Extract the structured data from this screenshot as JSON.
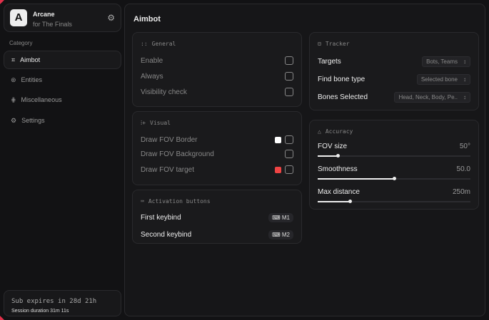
{
  "brand": {
    "name": "Arcane",
    "subtitle": "for The Finals",
    "logo_letter": "A"
  },
  "sidebar": {
    "category_label": "Category",
    "items": [
      {
        "label": "Aimbot",
        "icon": "crosshair-icon",
        "active": true
      },
      {
        "label": "Entities",
        "icon": "entities-icon"
      },
      {
        "label": "Miscellaneous",
        "icon": "misc-icon"
      },
      {
        "label": "Settings",
        "icon": "gear-icon"
      }
    ],
    "sub_expires": "Sub expires in 28d 21h",
    "session": "Session duration 31m 11s"
  },
  "main": {
    "title": "Aimbot",
    "general": {
      "title": "General",
      "rows": [
        {
          "label": "Enable"
        },
        {
          "label": "Always"
        },
        {
          "label": "Visibility check"
        }
      ]
    },
    "visual": {
      "title": "Visual",
      "rows": [
        {
          "label": "Draw FOV Border",
          "color": "#ffffff"
        },
        {
          "label": "Draw FOV Background"
        },
        {
          "label": "Draw FOV target",
          "color": "#ef4444"
        }
      ]
    },
    "activation": {
      "title": "Activation buttons",
      "rows": [
        {
          "label": "First keybind",
          "key": "M1"
        },
        {
          "label": "Second keybind",
          "key": "M2"
        }
      ]
    },
    "tracker": {
      "title": "Tracker",
      "rows": [
        {
          "label": "Targets",
          "value": "Bots, Teams"
        },
        {
          "label": "Find bone type",
          "value": "Selected bone"
        },
        {
          "label": "Bones Selected",
          "value": "Head, Neck, Body, Pe.."
        }
      ]
    },
    "accuracy": {
      "title": "Accuracy",
      "sliders": [
        {
          "label": "FOV size",
          "value": "50°",
          "fraction": 0.13
        },
        {
          "label": "Smoothness",
          "value": "50.0",
          "fraction": 0.5
        },
        {
          "label": "Max distance",
          "value": "250m",
          "fraction": 0.21
        }
      ]
    }
  }
}
